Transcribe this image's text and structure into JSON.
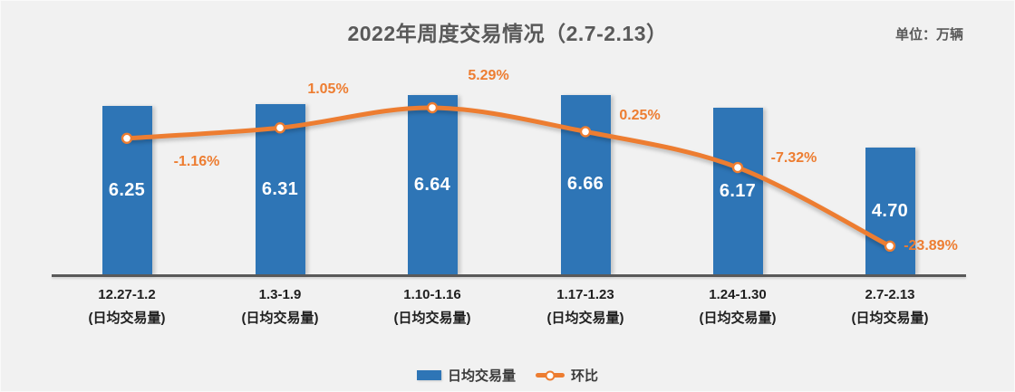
{
  "title": "2022年周度交易情况（2.7-2.13）",
  "unit_label": "单位：万辆",
  "colors": {
    "background": "#F1F1F1",
    "bar": "#2E75B6",
    "line": "#ED7D31",
    "title_text": "#595959",
    "axis": "#595959",
    "label_text": "#1F1F1F",
    "legend_text": "#3B3B3B",
    "bar_value_text": "#FFFFFF"
  },
  "legend": [
    {
      "label": "日均交易量",
      "type": "bar"
    },
    {
      "label": "环比",
      "type": "line"
    }
  ],
  "chart_data": {
    "type": "bar+line",
    "title": "2022年周度交易情况（2.7-2.13）",
    "unit": "万辆",
    "categories": [
      "12.27-1.2",
      "1.3-1.9",
      "1.10-1.16",
      "1.17-1.23",
      "1.24-1.30",
      "2.7-2.13"
    ],
    "category_sublabel": "(日均交易量)",
    "series": [
      {
        "name": "日均交易量",
        "type": "bar",
        "values": [
          6.25,
          6.31,
          6.64,
          6.66,
          6.17,
          4.7
        ],
        "value_labels": [
          "6.25",
          "6.31",
          "6.64",
          "6.66",
          "6.17",
          "4.70"
        ]
      },
      {
        "name": "环比",
        "type": "line",
        "values": [
          -1.16,
          1.05,
          5.29,
          0.25,
          -7.32,
          -23.89
        ],
        "value_labels": [
          "-1.16%",
          "1.05%",
          "5.29%",
          "0.25%",
          "-7.32%",
          "-23.89%"
        ]
      }
    ],
    "bar_axis": {
      "min": 0,
      "max": 7.7,
      "visible": false
    },
    "pct_axis": {
      "visible": false
    },
    "grid": false,
    "legend_position": "bottom"
  }
}
